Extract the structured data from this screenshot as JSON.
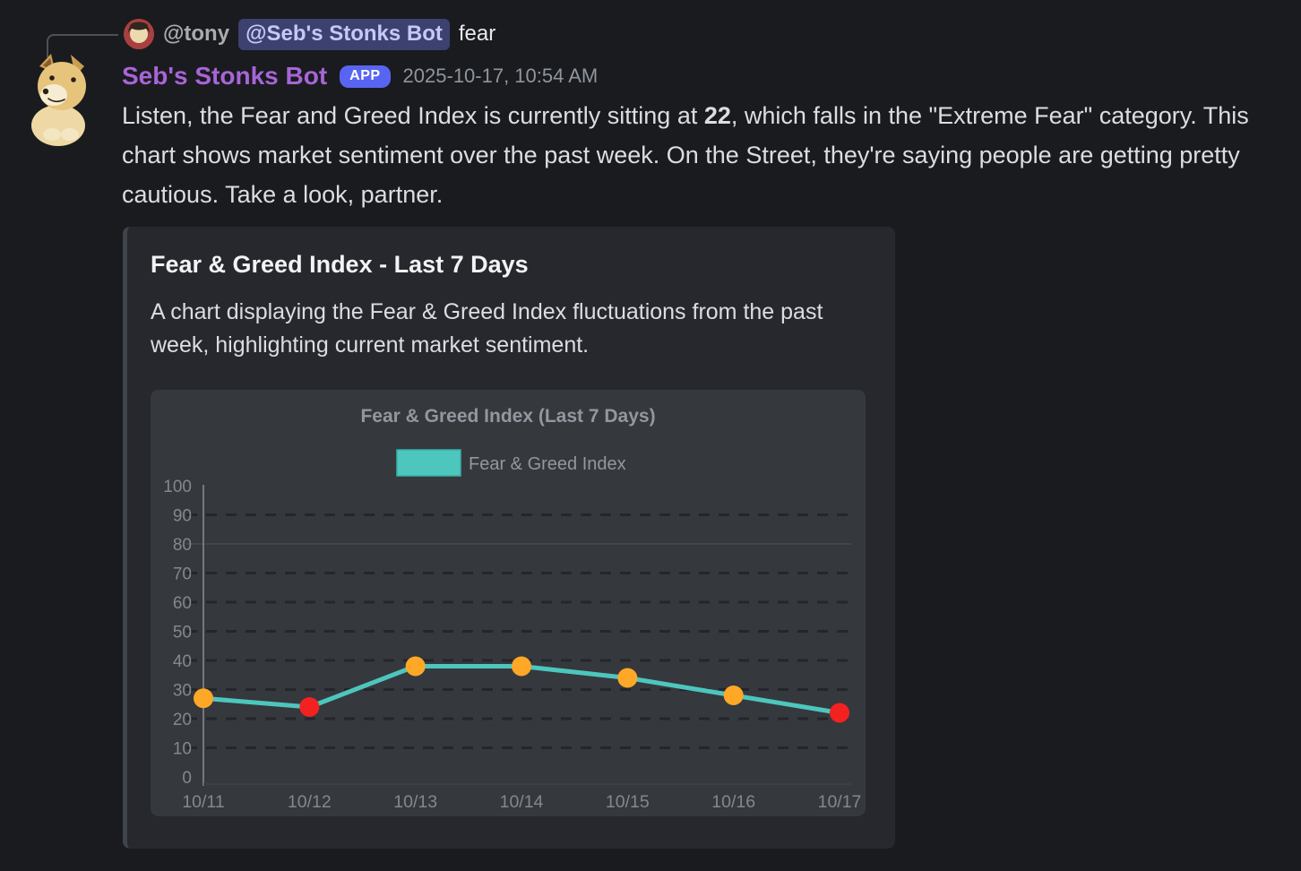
{
  "reply": {
    "author": "@tony",
    "mention": "@Seb's Stonks Bot",
    "snippet": "fear"
  },
  "message": {
    "author": "Seb's Stonks Bot",
    "app_badge": "APP",
    "timestamp": "2025-10-17, 10:54 AM",
    "body": {
      "part1": "Listen, the Fear and Greed Index is currently sitting at ",
      "bold": "22",
      "part2": ", which falls in the \"Extreme Fear\" category. This chart shows market sentiment over the past week. On the Street, they're saying people are getting pretty cautious. Take a look, partner."
    }
  },
  "embed": {
    "title": "Fear & Greed Index - Last 7 Days",
    "description": "A chart displaying the Fear & Greed Index fluctuations from the past week, highlighting current market sentiment."
  },
  "chart_data": {
    "type": "line",
    "title": "Fear & Greed Index (Last 7 Days)",
    "legend_entries": [
      "Fear & Greed Index"
    ],
    "legend_position": "top",
    "categories": [
      "10/11",
      "10/12",
      "10/13",
      "10/14",
      "10/15",
      "10/16",
      "10/17"
    ],
    "series": [
      {
        "name": "Fear & Greed Index",
        "values": [
          27,
          24,
          38,
          38,
          34,
          28,
          22
        ]
      }
    ],
    "point_colors": [
      "#FFA726",
      "#F42121",
      "#FFA726",
      "#FFA726",
      "#FFA726",
      "#FFA726",
      "#F42121"
    ],
    "line_color": "#4DC6BD",
    "ylim": [
      0,
      100
    ],
    "ytick_step": 10,
    "grid": "dashed-dark-plus-solid-line-at-80"
  },
  "colors": {
    "page_bg": "#1a1b1e",
    "embed_bg": "#26282d",
    "chart_bg": "#35383d",
    "username_purple": "#a765d8",
    "app_badge_blurple": "#5865f2",
    "mention_bg": "#3d4170",
    "mention_text": "#c3caf8",
    "teal_line": "#4DC6BD",
    "orange_point": "#FFA726",
    "red_point": "#F42121",
    "axis_text": "#84888e",
    "chart_title_text": "#9298a0"
  }
}
